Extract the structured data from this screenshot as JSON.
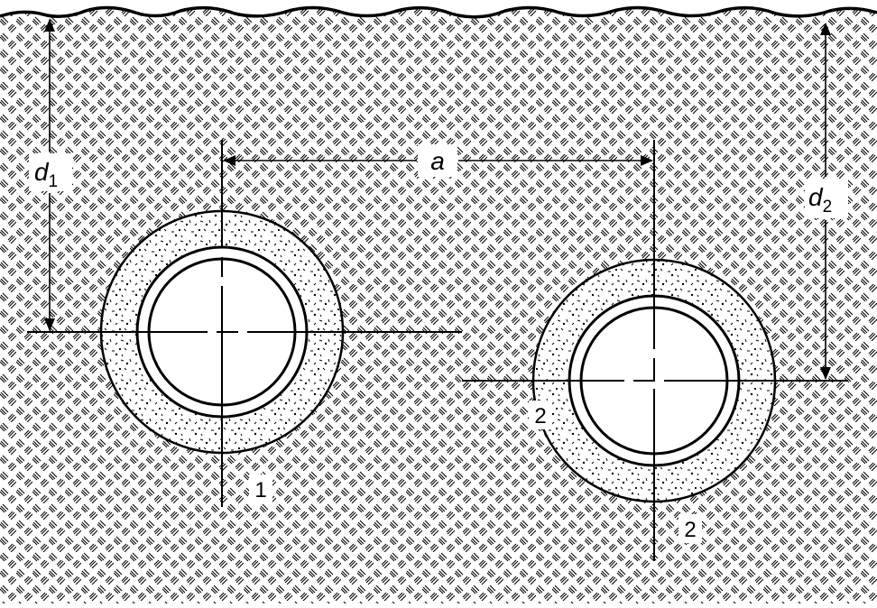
{
  "labels": {
    "spacing": "a",
    "depth_pipe1": "d",
    "depth_pipe1_sub": "1",
    "depth_pipe2": "d",
    "depth_pipe2_sub": "2",
    "pipe1_marker": "1",
    "pipe2_marker_side": "2",
    "pipe2_marker_bottom": "2"
  },
  "colors": {
    "soil_background": "#ffffff",
    "soil_hatch": "#000000",
    "bedding_fill": "#ffffff",
    "line": "#000000"
  }
}
